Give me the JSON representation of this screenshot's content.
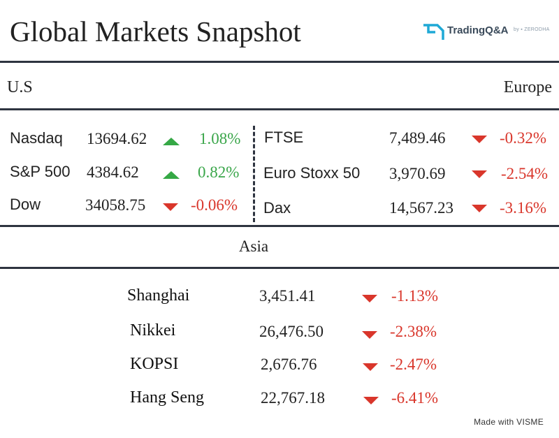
{
  "title": "Global Markets Snapshot",
  "brand": {
    "name": "TradingQ&A",
    "sub": "by ▪ ZERODHA",
    "accent": "#1fa9d6"
  },
  "regions": {
    "us": "U.S",
    "europe": "Europe",
    "asia": "Asia"
  },
  "us": [
    {
      "name": "Nasdaq",
      "value": "13694.62",
      "change": "1.08%",
      "direction": "up"
    },
    {
      "name": "S&P 500",
      "value": "4384.62",
      "change": "0.82%",
      "direction": "up"
    },
    {
      "name": "Dow",
      "value": "34058.75",
      "change": "-0.06%",
      "direction": "down"
    }
  ],
  "europe": [
    {
      "name": "FTSE",
      "value": "7,489.46",
      "change": "-0.32%",
      "direction": "down"
    },
    {
      "name": "Euro Stoxx 50",
      "value": "3,970.69",
      "change": "-2.54%",
      "direction": "down"
    },
    {
      "name": "Dax",
      "value": "14,567.23",
      "change": "-3.16%",
      "direction": "down"
    }
  ],
  "asia": [
    {
      "name": "Shanghai",
      "value": "3,451.41",
      "change": "-1.13%",
      "direction": "down"
    },
    {
      "name": "Nikkei",
      "value": "26,476.50",
      "change": "-2.38%",
      "direction": "down"
    },
    {
      "name": "KOPSI",
      "value": "2,676.76",
      "change": "-2.47%",
      "direction": "down"
    },
    {
      "name": "Hang Seng",
      "value": "22,767.18",
      "change": "-6.41%",
      "direction": "down"
    }
  ],
  "footer": "Made with VISME",
  "colors": {
    "up": "#35a845",
    "down": "#d9362b",
    "rule": "#2e3440"
  }
}
